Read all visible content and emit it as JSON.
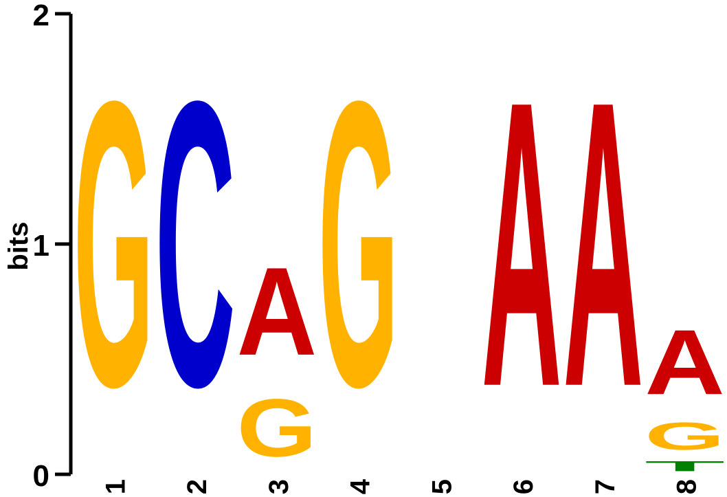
{
  "chart_data": {
    "type": "sequence-logo",
    "ylabel": "bits",
    "ylim": [
      0,
      2
    ],
    "yticks": [
      "0",
      "1",
      "2"
    ],
    "positions": [
      "1",
      "2",
      "3",
      "4",
      "5",
      "6",
      "7",
      "8"
    ],
    "colors": {
      "A": "#CC0000",
      "C": "#0000CC",
      "G": "#FFB300",
      "T": "#008000"
    },
    "stacks": [
      [
        {
          "letter": "G",
          "bits": 1.98
        }
      ],
      [
        {
          "letter": "C",
          "bits": 1.98
        }
      ],
      [
        {
          "letter": "G",
          "bits": 0.4
        },
        {
          "letter": "A",
          "bits": 0.61
        }
      ],
      [
        {
          "letter": "G",
          "bits": 1.98
        }
      ],
      [],
      [
        {
          "letter": "A",
          "bits": 1.98
        }
      ],
      [
        {
          "letter": "A",
          "bits": 1.98
        }
      ],
      [
        {
          "letter": "T",
          "bits": 0.07
        },
        {
          "letter": "G",
          "bits": 0.19
        },
        {
          "letter": "A",
          "bits": 0.45
        }
      ]
    ]
  }
}
